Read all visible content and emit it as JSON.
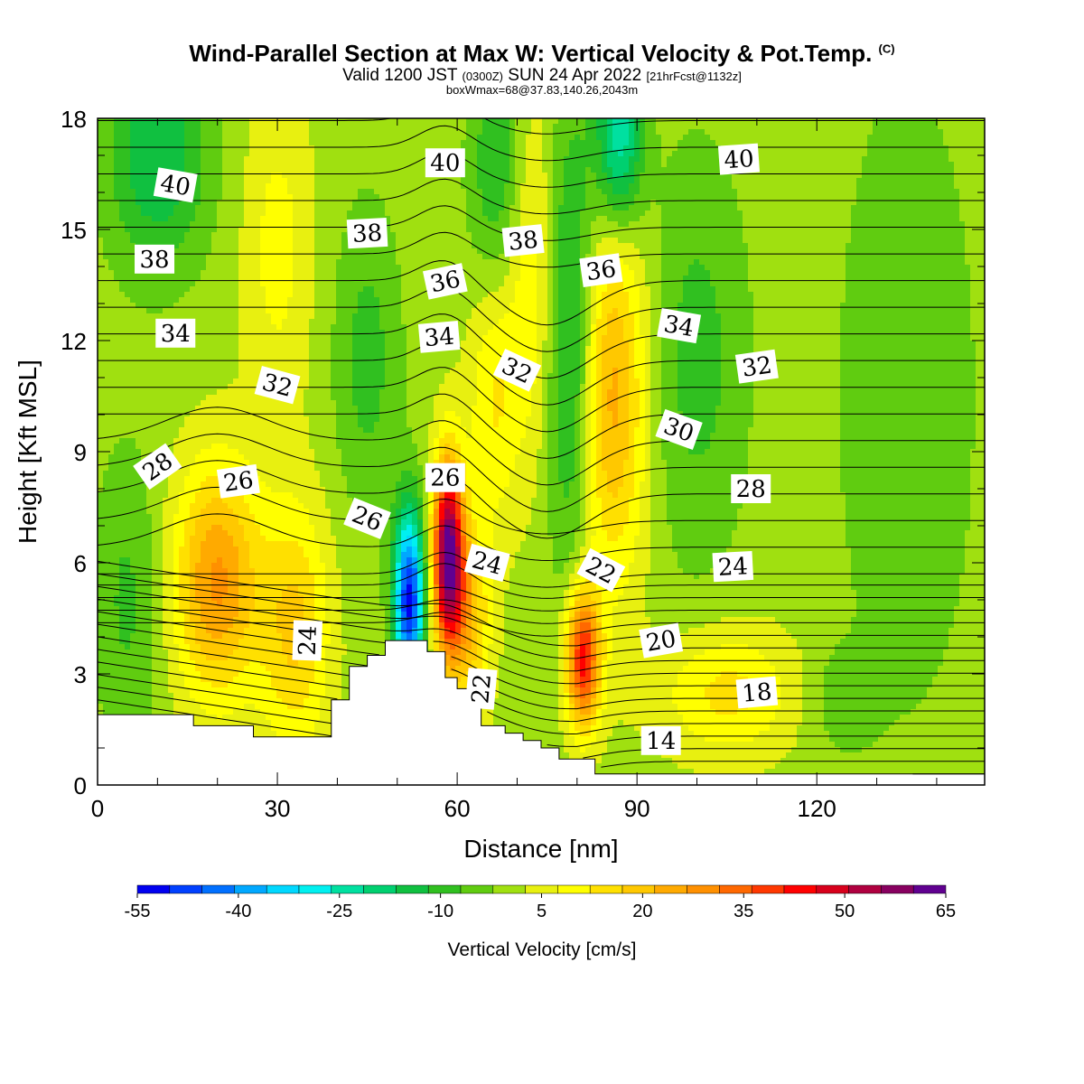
{
  "header": {
    "title_main": "Wind-Parallel Section at Max W: Vertical Velocity & Pot.Temp.",
    "title_mark": "(C)",
    "valid_pre": "Valid 1200 JST",
    "valid_utc": "(0300Z)",
    "valid_date": "SUN 24 Apr 2022",
    "valid_fcst": "[21hrFcst@1132z]",
    "box_info": "boxWmax=68@37.83,140.26,2043m"
  },
  "chart_data": {
    "type": "heatmap",
    "xlabel": "Distance [nm]",
    "ylabel": "Height [Kft MSL]",
    "xlim": [
      0,
      148
    ],
    "ylim": [
      0,
      18
    ],
    "x_ticks": [
      0,
      30,
      60,
      90,
      120
    ],
    "y_ticks": [
      0,
      3,
      6,
      9,
      12,
      15,
      18
    ],
    "colorbar": {
      "title": "Vertical Velocity [cm/s]",
      "labels": [
        "-55",
        "-40",
        "-25",
        "-10",
        "5",
        "20",
        "35",
        "50",
        "65"
      ],
      "levels": [
        -55,
        -50,
        -45,
        -40,
        -35,
        -30,
        -25,
        -20,
        -15,
        -10,
        -5,
        0,
        5,
        10,
        15,
        20,
        25,
        30,
        35,
        40,
        45,
        50,
        55,
        60,
        65
      ],
      "colors": [
        "#0000f0",
        "#0040ff",
        "#0070ff",
        "#00a8ff",
        "#00d8ff",
        "#00f0f0",
        "#00e0a0",
        "#00d070",
        "#10c040",
        "#30c020",
        "#60cc10",
        "#a0e010",
        "#e8f010",
        "#ffff00",
        "#ffe000",
        "#ffc800",
        "#ffaa00",
        "#ff9000",
        "#ff6800",
        "#ff3800",
        "#ff0000",
        "#d8001c",
        "#b00040",
        "#880060",
        "#600090"
      ]
    },
    "terrain": [
      [
        0,
        1.9
      ],
      [
        10,
        1.9
      ],
      [
        16,
        1.9
      ],
      [
        16,
        1.6
      ],
      [
        26,
        1.6
      ],
      [
        26,
        1.3
      ],
      [
        39,
        1.3
      ],
      [
        39,
        2.3
      ],
      [
        42,
        2.3
      ],
      [
        42,
        3.2
      ],
      [
        45,
        3.2
      ],
      [
        45,
        3.5
      ],
      [
        48,
        3.5
      ],
      [
        48,
        3.9
      ],
      [
        55,
        3.9
      ],
      [
        55,
        3.6
      ],
      [
        58,
        3.6
      ],
      [
        58,
        2.9
      ],
      [
        60,
        2.9
      ],
      [
        60,
        2.6
      ],
      [
        64,
        2.6
      ],
      [
        64,
        1.6
      ],
      [
        68,
        1.6
      ],
      [
        68,
        1.4
      ],
      [
        71,
        1.4
      ],
      [
        71,
        1.2
      ],
      [
        74,
        1.2
      ],
      [
        74,
        1.0
      ],
      [
        77,
        1.0
      ],
      [
        77,
        0.7
      ],
      [
        83,
        0.7
      ],
      [
        83,
        0.3
      ],
      [
        87,
        0.3
      ],
      [
        87,
        0.3
      ],
      [
        148,
        0.3
      ]
    ],
    "w_features": [
      {
        "x": 20,
        "y": 5.5,
        "sx": 5,
        "sy": 2.2,
        "w": 28
      },
      {
        "x": 33,
        "y": 4.2,
        "sx": 4,
        "sy": 2.4,
        "w": 18
      },
      {
        "x": 52,
        "y": 5.0,
        "sx": 1.8,
        "sy": 1.7,
        "w": -55
      },
      {
        "x": 58.5,
        "y": 6.2,
        "sx": 1.8,
        "sy": 1.8,
        "w": 65
      },
      {
        "x": 62,
        "y": 4.5,
        "sx": 2.5,
        "sy": 1.8,
        "w": 20
      },
      {
        "x": 81,
        "y": 3.4,
        "sx": 2.0,
        "sy": 1.3,
        "w": 45
      },
      {
        "x": 86,
        "y": 10.5,
        "sx": 4,
        "sy": 3.5,
        "w": 24
      },
      {
        "x": 72,
        "y": 14,
        "sx": 3,
        "sy": 3.5,
        "w": 12
      },
      {
        "x": 66,
        "y": 10.5,
        "sx": 3,
        "sy": 2.5,
        "w": 12
      },
      {
        "x": 79,
        "y": 12.0,
        "sx": 2.8,
        "sy": 4.5,
        "w": -18
      },
      {
        "x": 67,
        "y": 16.5,
        "sx": 3.5,
        "sy": 2.5,
        "w": -14
      },
      {
        "x": 87,
        "y": 17.5,
        "sx": 2.8,
        "sy": 1.8,
        "w": -28
      },
      {
        "x": 10,
        "y": 17.0,
        "sx": 6,
        "sy": 2.2,
        "w": -18
      },
      {
        "x": 100,
        "y": 11.5,
        "sx": 6,
        "sy": 4,
        "w": -10
      },
      {
        "x": 135,
        "y": 10.5,
        "sx": 8,
        "sy": 6,
        "w": -8
      },
      {
        "x": 45,
        "y": 11.5,
        "sx": 4,
        "sy": 3,
        "w": -10
      },
      {
        "x": 5,
        "y": 5.0,
        "sx": 4,
        "sy": 3,
        "w": -9
      },
      {
        "x": 105,
        "y": 2.5,
        "sx": 8,
        "sy": 1.2,
        "w": 14
      },
      {
        "x": 124,
        "y": 2.3,
        "sx": 4,
        "sy": 1.0,
        "w": -6
      },
      {
        "x": 30,
        "y": 14.5,
        "sx": 4,
        "sy": 3,
        "w": 9
      }
    ],
    "theta_levels": [
      10,
      11,
      12,
      13,
      14,
      15,
      16,
      17,
      18,
      19,
      20,
      21,
      22,
      23,
      24,
      25,
      26,
      27,
      28,
      29,
      30,
      31,
      32,
      33,
      34,
      35,
      36,
      37,
      38,
      39,
      40,
      41,
      42,
      43
    ],
    "contour_labels": [
      {
        "text": "40",
        "x": 13,
        "y": 16.2,
        "angle": 10
      },
      {
        "text": "40",
        "x": 58,
        "y": 16.8,
        "angle": 0
      },
      {
        "text": "40",
        "x": 107,
        "y": 16.9,
        "angle": -4
      },
      {
        "text": "38",
        "x": 9.5,
        "y": 14.2,
        "angle": 0
      },
      {
        "text": "38",
        "x": 45,
        "y": 14.9,
        "angle": -3
      },
      {
        "text": "38",
        "x": 71,
        "y": 14.7,
        "angle": -6
      },
      {
        "text": "36",
        "x": 58,
        "y": 13.6,
        "angle": -12
      },
      {
        "text": "36",
        "x": 84,
        "y": 13.9,
        "angle": -8
      },
      {
        "text": "34",
        "x": 13,
        "y": 12.2,
        "angle": 0
      },
      {
        "text": "34",
        "x": 57,
        "y": 12.1,
        "angle": -5
      },
      {
        "text": "34",
        "x": 97,
        "y": 12.4,
        "angle": 10
      },
      {
        "text": "32",
        "x": 30,
        "y": 10.8,
        "angle": 15
      },
      {
        "text": "32",
        "x": 70,
        "y": 11.2,
        "angle": 25
      },
      {
        "text": "32",
        "x": 110,
        "y": 11.3,
        "angle": -8
      },
      {
        "text": "30",
        "x": 97,
        "y": 9.6,
        "angle": 20
      },
      {
        "text": "28",
        "x": 10,
        "y": 8.6,
        "angle": -35
      },
      {
        "text": "28",
        "x": 109,
        "y": 8.0,
        "angle": 0
      },
      {
        "text": "26",
        "x": 23.5,
        "y": 8.2,
        "angle": -8
      },
      {
        "text": "26",
        "x": 45,
        "y": 7.2,
        "angle": 22
      },
      {
        "text": "26",
        "x": 58,
        "y": 8.3,
        "angle": 0
      },
      {
        "text": "24",
        "x": 65,
        "y": 6.0,
        "angle": 15
      },
      {
        "text": "24",
        "x": 106,
        "y": 5.9,
        "angle": -3
      },
      {
        "text": "24",
        "x": 35,
        "y": 3.9,
        "angle": -88
      },
      {
        "text": "22",
        "x": 84,
        "y": 5.8,
        "angle": 28
      },
      {
        "text": "22",
        "x": 64,
        "y": 2.6,
        "angle": -85
      },
      {
        "text": "20",
        "x": 94,
        "y": 3.9,
        "angle": -10
      },
      {
        "text": "18",
        "x": 110,
        "y": 2.5,
        "angle": -5
      },
      {
        "text": "14",
        "x": 94,
        "y": 1.2,
        "angle": 0
      }
    ]
  }
}
